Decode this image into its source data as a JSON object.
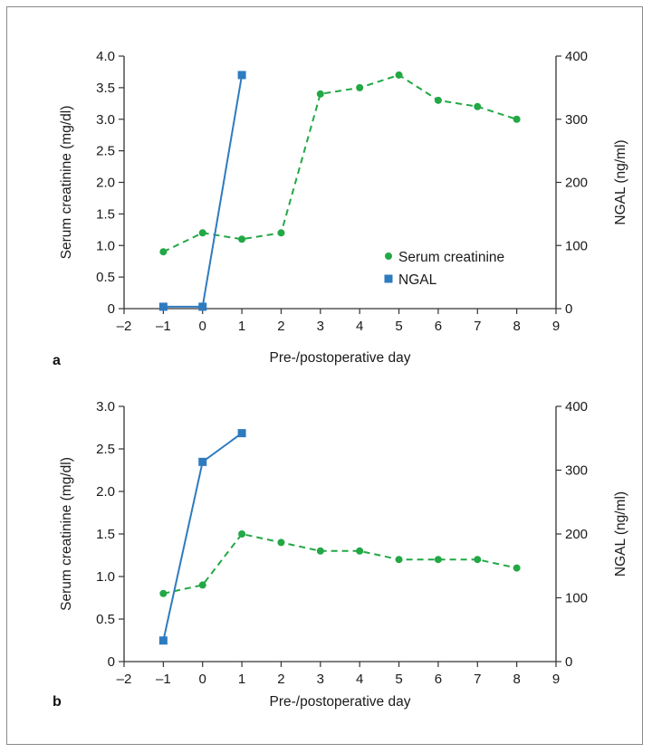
{
  "colors": {
    "creatinine": "#22a845",
    "ngal": "#2e7bbf",
    "axis": "#333333"
  },
  "chart_data": [
    {
      "type": "line",
      "panel_label": "a",
      "xlabel": "Pre-/postoperative day",
      "ylabel": "Serum creatinine (mg/dl)",
      "y2label": "NGAL (ng/ml)",
      "xlim": [
        -2,
        9
      ],
      "ylim": [
        0,
        4.0
      ],
      "y2lim": [
        0,
        400
      ],
      "x_ticks": [
        "–2",
        "–1",
        "0",
        "1",
        "2",
        "3",
        "4",
        "5",
        "6",
        "7",
        "8",
        "9"
      ],
      "y_ticks": [
        "0",
        "0.5",
        "1.0",
        "1.5",
        "2.0",
        "2.5",
        "3.0",
        "3.5",
        "4.0"
      ],
      "y2_ticks": [
        "0",
        "100",
        "200",
        "300",
        "400"
      ],
      "legend": {
        "position": "center-right",
        "entries": [
          "Serum creatinine",
          "NGAL"
        ]
      },
      "series": [
        {
          "name": "Serum creatinine",
          "axis": "left",
          "style": "dashed-circle",
          "x": [
            -1,
            0,
            1,
            2,
            3,
            4,
            5,
            6,
            7,
            8
          ],
          "y": [
            0.9,
            1.2,
            1.1,
            1.2,
            3.4,
            3.5,
            3.7,
            3.3,
            3.2,
            3.0
          ]
        },
        {
          "name": "NGAL",
          "axis": "right",
          "style": "solid-square",
          "x": [
            -1,
            0,
            1
          ],
          "y": [
            3,
            3,
            370
          ]
        }
      ]
    },
    {
      "type": "line",
      "panel_label": "b",
      "xlabel": "Pre-/postoperative day",
      "ylabel": "Serum creatinine (mg/dl)",
      "y2label": "NGAL (ng/ml)",
      "xlim": [
        -2,
        9
      ],
      "ylim": [
        0,
        3.0
      ],
      "y2lim": [
        0,
        400
      ],
      "x_ticks": [
        "–2",
        "–1",
        "0",
        "1",
        "2",
        "3",
        "4",
        "5",
        "6",
        "7",
        "8",
        "9"
      ],
      "y_ticks": [
        "0",
        "0.5",
        "1.0",
        "1.5",
        "2.0",
        "2.5",
        "3.0"
      ],
      "y2_ticks": [
        "0",
        "100",
        "200",
        "300",
        "400"
      ],
      "series": [
        {
          "name": "Serum creatinine",
          "axis": "left",
          "style": "dashed-circle",
          "x": [
            -1,
            0,
            1,
            2,
            3,
            4,
            5,
            6,
            7,
            8
          ],
          "y": [
            0.8,
            0.9,
            1.5,
            1.4,
            1.3,
            1.3,
            1.2,
            1.2,
            1.2,
            1.1
          ]
        },
        {
          "name": "NGAL",
          "axis": "right",
          "style": "solid-square",
          "x": [
            -1,
            0,
            1
          ],
          "y": [
            33,
            313,
            358
          ]
        }
      ]
    }
  ]
}
